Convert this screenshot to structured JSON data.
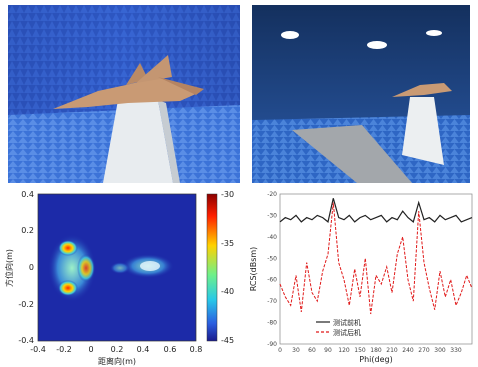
{
  "photos": {
    "left": {
      "label": ""
    },
    "right": {
      "label": ""
    }
  },
  "isar_image": {
    "x_ticks": [
      "-0.4",
      "-0.2",
      "0",
      "0.2",
      "0.4",
      "0.6",
      "0.8"
    ],
    "y_ticks": [
      "0.4",
      "0.2",
      "0",
      "-0.2",
      "-0.4"
    ],
    "xlabel": "距离向(m)",
    "ylabel": "方位向(m)",
    "colorbar_ticks": [
      "-30",
      "-35",
      "-40",
      "-45"
    ],
    "colors": {
      "background": "#1c2aa8"
    }
  },
  "rcs_chart": {
    "type": "line",
    "xlabel": "Phi(deg)",
    "ylabel": "RCS(dBsm)",
    "y_ticks": [
      "-20",
      "-30",
      "-40",
      "-50",
      "-60",
      "-70",
      "-80",
      "-90"
    ],
    "x_ticks": [
      "0",
      "30",
      "60",
      "90",
      "120",
      "150",
      "180",
      "210",
      "240",
      "270",
      "300",
      "330"
    ],
    "legend": [
      "测试前机",
      "测试后机"
    ],
    "colors": {
      "series_1": "#222222",
      "series_2": "#e01818"
    }
  },
  "chart_data": {
    "type": "line",
    "xlabel": "Phi(deg)",
    "ylabel": "RCS(dBsm)",
    "ylim": [
      -90,
      -20
    ],
    "xlim": [
      0,
      360
    ],
    "x": [
      0,
      10,
      20,
      30,
      40,
      50,
      60,
      70,
      80,
      90,
      100,
      110,
      120,
      130,
      140,
      150,
      160,
      170,
      180,
      190,
      200,
      210,
      220,
      230,
      240,
      250,
      260,
      270,
      280,
      290,
      300,
      310,
      320,
      330,
      340,
      350,
      360
    ],
    "series": [
      {
        "name": "测试前机",
        "values": [
          -33,
          -31,
          -32,
          -30,
          -33,
          -31,
          -32,
          -30,
          -31,
          -33,
          -22,
          -31,
          -32,
          -30,
          -33,
          -31,
          -30,
          -32,
          -31,
          -30,
          -33,
          -31,
          -32,
          -28,
          -31,
          -33,
          -24,
          -32,
          -31,
          -33,
          -30,
          -32,
          -31,
          -30,
          -33,
          -32,
          -31
        ]
      },
      {
        "name": "测试后机",
        "values": [
          -62,
          -68,
          -72,
          -58,
          -75,
          -52,
          -66,
          -70,
          -56,
          -48,
          -24,
          -52,
          -60,
          -72,
          -55,
          -68,
          -50,
          -76,
          -58,
          -62,
          -54,
          -66,
          -48,
          -40,
          -60,
          -70,
          -28,
          -52,
          -64,
          -74,
          -56,
          -68,
          -60,
          -72,
          -66,
          -58,
          -64
        ]
      }
    ]
  }
}
